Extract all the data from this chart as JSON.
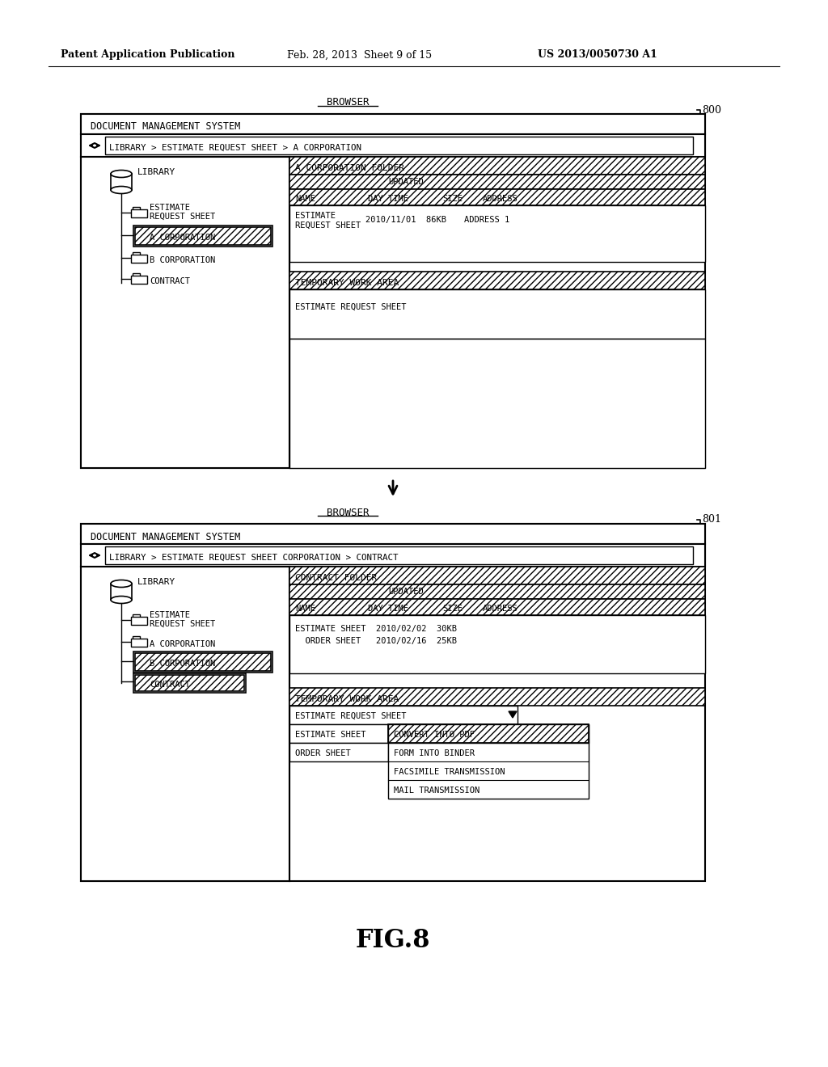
{
  "bg_color": "#ffffff",
  "header_text1": "Patent Application Publication",
  "header_text2": "Feb. 28, 2013  Sheet 9 of 15",
  "header_text3": "US 2013/0050730 A1",
  "fig_label": "FIG.8",
  "browser_label": "BROWSER",
  "ref_num1": "800",
  "ref_num2": "801",
  "dms_title": "DOCUMENT MANAGEMENT SYSTEM",
  "nav_bar1": "LIBRARY > ESTIMATE REQUEST SHEET > A CORPORATION",
  "nav_bar2": "LIBRARY > ESTIMATE REQUEST SHEET CORPORATION > CONTRACT",
  "temp_work_label": "TEMPORARY WORK AREA",
  "temp_work_item1": "ESTIMATE REQUEST SHEET",
  "folder1_header": "A CORPORATION FOLDER",
  "folder2_header": "CONTRACT FOLDER",
  "col_updated": "UPDATED",
  "col_name": "NAME",
  "col_day_time": "DAY TIME",
  "col_size": "SIZE",
  "col_address": "ADDRESS",
  "f1_row1a": "ESTIMATE",
  "f1_row1b": "REQUEST SHEET",
  "f1_date": "2010/11/01  86KB",
  "f1_addr": "ADDRESS 1",
  "f2_row1": "ESTIMATE SHEET  2010/02/02  30KB",
  "f2_row2": "  ORDER SHEET   2010/02/16  25KB",
  "dd_item1": "ESTIMATE REQUEST SHEET",
  "dd_label1": "ESTIMATE SHEET",
  "dd_label2": "ORDER SHEET",
  "menu1": "CONVERT INTO PDF",
  "menu2": "FORM INTO BINDER",
  "menu3": "FACSIMILE TRANSMISSION",
  "menu4": "MAIL TRANSMISSION",
  "lib_label": "LIBRARY",
  "est_label1": "ESTIMATE",
  "est_label2": "REQUEST SHEET",
  "a_corp": "A CORPORATION",
  "b_corp": "B CORPORATION",
  "contract": "CONTRACT"
}
